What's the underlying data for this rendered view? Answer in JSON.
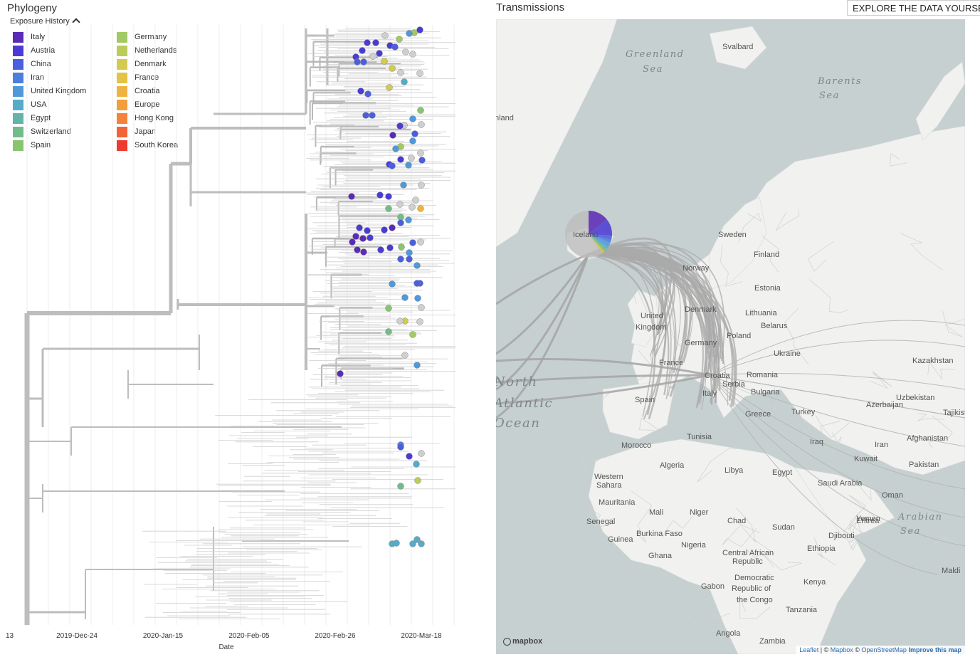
{
  "phylogeny": {
    "title": "Phylogeny",
    "legend_toggle": "Exposure History",
    "legend": [
      {
        "label": "Italy",
        "color": "#5a2ab8"
      },
      {
        "label": "Austria",
        "color": "#4b3bd6"
      },
      {
        "label": "China",
        "color": "#4a5fe0"
      },
      {
        "label": "Iran",
        "color": "#4a7fdf"
      },
      {
        "label": "United Kingdom",
        "color": "#4f99da"
      },
      {
        "label": "USA",
        "color": "#57abc9"
      },
      {
        "label": "Egypt",
        "color": "#63b4a8"
      },
      {
        "label": "Switzerland",
        "color": "#73bc8a"
      },
      {
        "label": "Spain",
        "color": "#89c46f"
      },
      {
        "label": "Germany",
        "color": "#a3c965"
      },
      {
        "label": "Netherlands",
        "color": "#bccc5a"
      },
      {
        "label": "Denmark",
        "color": "#d2cb50"
      },
      {
        "label": "France",
        "color": "#e4c345"
      },
      {
        "label": "Croatia",
        "color": "#efb440"
      },
      {
        "label": "Europe",
        "color": "#f39d3c"
      },
      {
        "label": "Hong Kong",
        "color": "#f4823a"
      },
      {
        "label": "Japan",
        "color": "#f26337"
      },
      {
        "label": "South Korea",
        "color": "#ee3b30"
      }
    ],
    "axis": {
      "title": "Date",
      "ticks": [
        "2019-Dec-24",
        "2020-Jan-15",
        "2020-Feb-05",
        "2020-Feb-26",
        "2020-Mar-18"
      ],
      "partial_tick": "13"
    }
  },
  "transmissions": {
    "title": "Transmissions",
    "explore_button": "EXPLORE THE DATA YOURSELF",
    "places": [
      {
        "name": "Svalbard"
      },
      {
        "name": "nland"
      },
      {
        "name": "Iceland"
      },
      {
        "name": "Sweden"
      },
      {
        "name": "Finland"
      },
      {
        "name": "Norway"
      },
      {
        "name": "Estonia"
      },
      {
        "name": "Denmark"
      },
      {
        "name": "Lithuania"
      },
      {
        "name": "United"
      },
      {
        "name": "Kingdom"
      },
      {
        "name": "Belarus"
      },
      {
        "name": "Poland"
      },
      {
        "name": "Germany"
      },
      {
        "name": "Ukraine"
      },
      {
        "name": "Kazakhstan"
      },
      {
        "name": "France"
      },
      {
        "name": "Croatia"
      },
      {
        "name": "Romania"
      },
      {
        "name": "Serbia"
      },
      {
        "name": "Bulgaria"
      },
      {
        "name": "Italy"
      },
      {
        "name": "Uzbekistan"
      },
      {
        "name": "Azerbaijan"
      },
      {
        "name": "Tajikista"
      },
      {
        "name": "Spain"
      },
      {
        "name": "Greece"
      },
      {
        "name": "Turkey"
      },
      {
        "name": "Tunisia"
      },
      {
        "name": "Afghanistan"
      },
      {
        "name": "Iraq"
      },
      {
        "name": "Iran"
      },
      {
        "name": "Morocco"
      },
      {
        "name": "Kuwait"
      },
      {
        "name": "Pakistan"
      },
      {
        "name": "Algeria"
      },
      {
        "name": "Libya"
      },
      {
        "name": "Egypt"
      },
      {
        "name": "Saudi Arabia"
      },
      {
        "name": "Western"
      },
      {
        "name": "Sahara"
      },
      {
        "name": "Oman"
      },
      {
        "name": "Mauritania"
      },
      {
        "name": "Mali"
      },
      {
        "name": "Niger"
      },
      {
        "name": "Eritrea"
      },
      {
        "name": "Yemen"
      },
      {
        "name": "Senegal"
      },
      {
        "name": "Chad"
      },
      {
        "name": "Sudan"
      },
      {
        "name": "Djibouti"
      },
      {
        "name": "Burkina Faso"
      },
      {
        "name": "Guinea"
      },
      {
        "name": "Nigeria"
      },
      {
        "name": "Ethiopia"
      },
      {
        "name": "Ghana"
      },
      {
        "name": "Central African"
      },
      {
        "name": "Republic"
      },
      {
        "name": "Maldi"
      },
      {
        "name": "Gabon"
      },
      {
        "name": "Democratic"
      },
      {
        "name": "Republic of"
      },
      {
        "name": "the Congo"
      },
      {
        "name": "Kenya"
      },
      {
        "name": "Tanzania"
      },
      {
        "name": "Angola"
      },
      {
        "name": "Zambia"
      }
    ],
    "seas": [
      {
        "name": "Greenland"
      },
      {
        "name": "Sea"
      },
      {
        "name": "Barents"
      },
      {
        "name": "Sea"
      },
      {
        "name": "North"
      },
      {
        "name": "Atlantic"
      },
      {
        "name": "Ocean"
      },
      {
        "name": "Arabian"
      },
      {
        "name": "Sea"
      }
    ],
    "mapbox_logo": "mapbox",
    "attribution": {
      "leaflet": "Leaflet",
      "sep1": " | © ",
      "mapbox": "Mapbox",
      "sep2": " © ",
      "osm": "OpenStreetMap",
      "improve": "Improve this map"
    }
  }
}
